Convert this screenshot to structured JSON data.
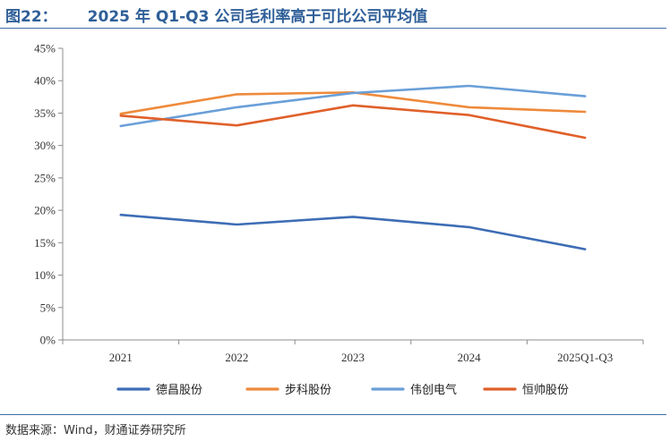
{
  "figure": {
    "number": "图22：",
    "title": "2025 年 Q1-Q3 公司毛利率高于可比公司平均值",
    "source": "数据来源：Wind，财通证券研究所"
  },
  "chart_data": {
    "type": "line",
    "title": "2025 年 Q1-Q3 公司毛利率高于可比公司平均值",
    "xlabel": "",
    "ylabel": "",
    "categories": [
      "2021",
      "2022",
      "2023",
      "2024",
      "2025Q1-Q3"
    ],
    "ylim": [
      0,
      45
    ],
    "yticks": [
      "0%",
      "5%",
      "10%",
      "15%",
      "20%",
      "25%",
      "30%",
      "35%",
      "40%",
      "45%"
    ],
    "grid": false,
    "legend_position": "bottom",
    "series": [
      {
        "name": "德昌股份",
        "color": "#3d6db5",
        "values": [
          19.3,
          17.8,
          19.0,
          17.4,
          14.0
        ]
      },
      {
        "name": "步科股份",
        "color": "#ee8a3b",
        "values": [
          34.9,
          37.9,
          38.2,
          35.9,
          35.2
        ]
      },
      {
        "name": "伟创电气",
        "color": "#6a9fd8",
        "values": [
          33.0,
          35.9,
          38.1,
          39.2,
          37.6
        ]
      },
      {
        "name": "恒帅股份",
        "color": "#e0602a",
        "values": [
          34.6,
          33.1,
          36.2,
          34.7,
          31.2
        ]
      }
    ]
  }
}
